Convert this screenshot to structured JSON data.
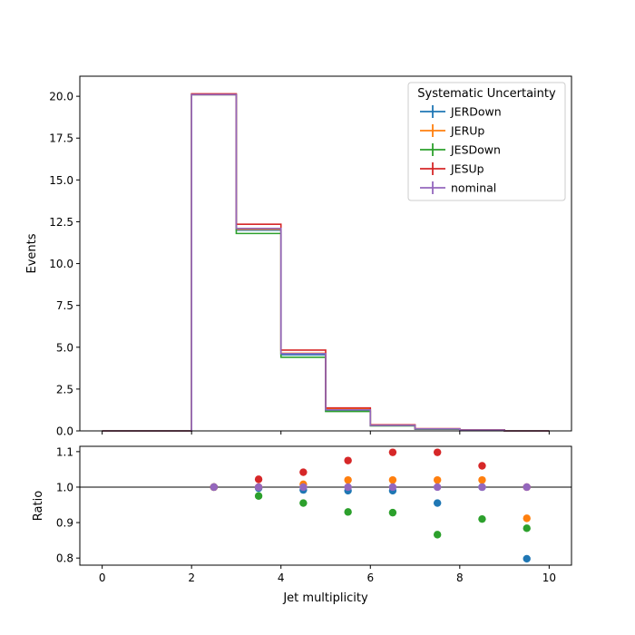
{
  "chart_data": [
    {
      "type": "step",
      "panel": "main",
      "xlabel": "",
      "ylabel": "Events",
      "xlim": [
        -0.5,
        10.5
      ],
      "ylim": [
        0,
        21.2
      ],
      "yticks": [
        0.0,
        2.5,
        5.0,
        7.5,
        10.0,
        12.5,
        15.0,
        17.5,
        20.0
      ],
      "ytick_labels": [
        "0.0",
        "2.5",
        "5.0",
        "7.5",
        "10.0",
        "12.5",
        "15.0",
        "17.5",
        "20.0"
      ],
      "xticks": [
        0,
        2,
        4,
        6,
        8,
        10
      ],
      "bin_edges": [
        0,
        1,
        2,
        3,
        4,
        5,
        6,
        7,
        8,
        9,
        10
      ],
      "legend": {
        "title": "Systematic Uncertainty",
        "placement": "top-right"
      },
      "series": [
        {
          "name": "JERDown",
          "color": "#1f77b4",
          "values": [
            0,
            0,
            20.1,
            12.0,
            4.55,
            1.18,
            0.32,
            0.11,
            0.05,
            0.0
          ]
        },
        {
          "name": "JERUp",
          "color": "#ff7f0e",
          "values": [
            0,
            0,
            20.1,
            12.05,
            4.64,
            1.3,
            0.33,
            0.12,
            0.055,
            0.0
          ]
        },
        {
          "name": "JESDown",
          "color": "#2ca02c",
          "values": [
            0,
            0,
            20.1,
            11.8,
            4.4,
            1.16,
            0.3,
            0.1,
            0.05,
            0.0
          ]
        },
        {
          "name": "JESUp",
          "color": "#d62728",
          "values": [
            0,
            0,
            20.15,
            12.35,
            4.83,
            1.37,
            0.36,
            0.13,
            0.06,
            0.0
          ]
        },
        {
          "name": "nominal",
          "color": "#9467bd",
          "values": [
            0,
            0,
            20.1,
            12.1,
            4.62,
            1.26,
            0.33,
            0.12,
            0.055,
            0.0
          ]
        }
      ]
    },
    {
      "type": "scatter",
      "panel": "ratio",
      "xlabel": "Jet multiplicity",
      "ylabel": "Ratio",
      "xlim": [
        -0.5,
        10.5
      ],
      "ylim": [
        0.78,
        1.115
      ],
      "xticks": [
        0,
        2,
        4,
        6,
        8,
        10
      ],
      "xtick_labels": [
        "0",
        "2",
        "4",
        "6",
        "8",
        "10"
      ],
      "yticks": [
        0.8,
        0.9,
        1.0,
        1.1
      ],
      "ytick_labels": [
        "0.8",
        "0.9",
        "1.0",
        "1.1"
      ],
      "reference_line": 1.0,
      "x": [
        2.5,
        3.5,
        4.5,
        5.5,
        6.5,
        7.5,
        8.5,
        9.5
      ],
      "series": [
        {
          "name": "JERDown",
          "color": "#1f77b4",
          "values": [
            1.0,
            0.997,
            0.992,
            0.99,
            0.99,
            0.955,
            1.0,
            0.798
          ]
        },
        {
          "name": "JERUp",
          "color": "#ff7f0e",
          "values": [
            1.0,
            1.0,
            1.008,
            1.02,
            1.02,
            1.02,
            1.02,
            0.912
          ]
        },
        {
          "name": "JESDown",
          "color": "#2ca02c",
          "values": [
            1.0,
            0.975,
            0.955,
            0.93,
            0.928,
            0.866,
            0.91,
            0.884
          ]
        },
        {
          "name": "JESUp",
          "color": "#d62728",
          "values": [
            1.0,
            1.022,
            1.042,
            1.075,
            1.098,
            1.098,
            1.06,
            1.0
          ]
        },
        {
          "name": "nominal",
          "color": "#9467bd",
          "values": [
            1.0,
            1.0,
            1.0,
            1.0,
            1.0,
            1.0,
            1.0,
            1.0
          ]
        }
      ]
    }
  ]
}
